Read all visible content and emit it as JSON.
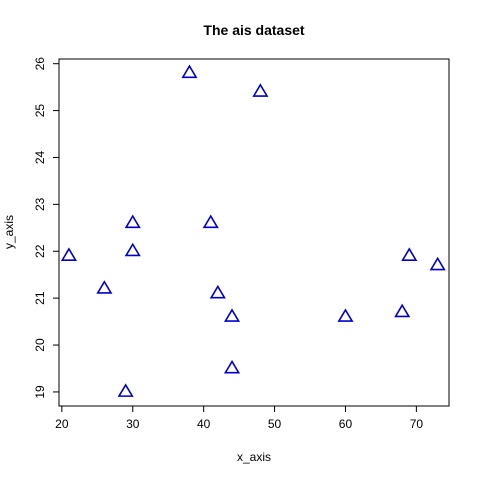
{
  "chart_data": {
    "type": "scatter",
    "title": "The ais dataset",
    "xlabel": "x_axis",
    "ylabel": "y_axis",
    "xlim": [
      19.6,
      74.6
    ],
    "ylim": [
      18.7,
      26.1
    ],
    "xticks": [
      20,
      30,
      40,
      50,
      60,
      70
    ],
    "yticks": [
      19,
      20,
      21,
      22,
      23,
      24,
      25,
      26
    ],
    "marker": "open-triangle",
    "marker_color": "#0000cc",
    "grid": false,
    "points": [
      {
        "x": 21,
        "y": 21.9
      },
      {
        "x": 26,
        "y": 21.2
      },
      {
        "x": 29,
        "y": 19.0
      },
      {
        "x": 30,
        "y": 22.6
      },
      {
        "x": 30,
        "y": 22.0
      },
      {
        "x": 38,
        "y": 25.8
      },
      {
        "x": 41,
        "y": 22.6
      },
      {
        "x": 42,
        "y": 21.1
      },
      {
        "x": 44,
        "y": 20.6
      },
      {
        "x": 44,
        "y": 19.5
      },
      {
        "x": 48,
        "y": 25.4
      },
      {
        "x": 60,
        "y": 20.6
      },
      {
        "x": 68,
        "y": 20.7
      },
      {
        "x": 69,
        "y": 21.9
      },
      {
        "x": 73,
        "y": 21.7
      }
    ]
  }
}
